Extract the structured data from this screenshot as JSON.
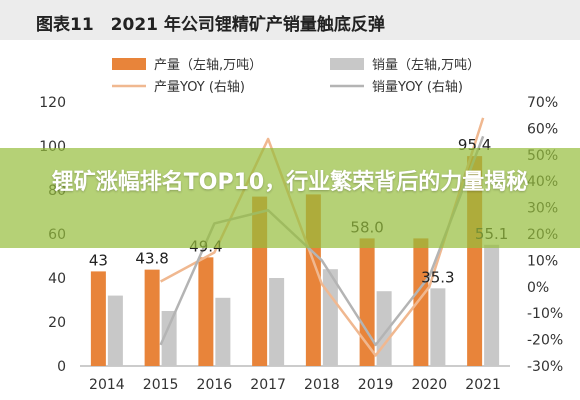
{
  "header": {
    "title": "图表11　2021 年公司锂精矿产销量触底反弹"
  },
  "overlay": {
    "headline": "锂矿涨幅排名TOP10，行业繁荣背后的力量揭秘"
  },
  "chart_data": {
    "type": "bar",
    "categories": [
      "2014",
      "2015",
      "2016",
      "2017",
      "2018",
      "2019",
      "2020",
      "2021"
    ],
    "series": [
      {
        "name": "产量（左轴,万吨）",
        "kind": "bar",
        "axis": "left",
        "color": "#e8843a",
        "values": [
          43,
          43.8,
          49.4,
          77,
          78,
          58,
          58,
          95.4
        ]
      },
      {
        "name": "销量（左轴,万吨）",
        "kind": "bar",
        "axis": "left",
        "color": "#c8c8c8",
        "values": [
          32,
          25,
          31,
          40,
          44,
          34,
          35.3,
          55.1
        ]
      },
      {
        "name": "产量YOY (右轴)",
        "kind": "line",
        "axis": "right",
        "color": "#f0b890",
        "values": [
          null,
          2,
          13,
          56,
          1,
          -26,
          0,
          64
        ]
      },
      {
        "name": "销量YOY (右轴)",
        "kind": "line",
        "axis": "right",
        "color": "#b4b4b4",
        "values": [
          null,
          -22,
          24,
          29,
          10,
          -22,
          4,
          57
        ]
      }
    ],
    "data_labels": [
      {
        "series": "产量（左轴,万吨）",
        "category": "2014",
        "text": "43"
      },
      {
        "series": "产量（左轴,万吨）",
        "category": "2015",
        "text": "43.8"
      },
      {
        "series": "产量（左轴,万吨）",
        "category": "2016",
        "text": "49.4"
      },
      {
        "series": "产量（左轴,万吨）",
        "category": "2019",
        "text": "58.0"
      },
      {
        "series": "销量（左轴,万吨）",
        "category": "2020",
        "text": "35.3"
      },
      {
        "series": "产量（左轴,万吨）",
        "category": "2021",
        "text": "95.4"
      },
      {
        "series": "销量（左轴,万吨）",
        "category": "2021",
        "text": "55.1"
      }
    ],
    "y_left": {
      "range": [
        0,
        120
      ],
      "ticks": [
        0,
        20,
        40,
        60,
        80,
        100,
        120
      ]
    },
    "y_right": {
      "range": [
        -30,
        70
      ],
      "ticks": [
        -30,
        -20,
        -10,
        0,
        10,
        20,
        30,
        40,
        50,
        60,
        70
      ],
      "unit": "%"
    },
    "grid": false,
    "legend": "top"
  }
}
